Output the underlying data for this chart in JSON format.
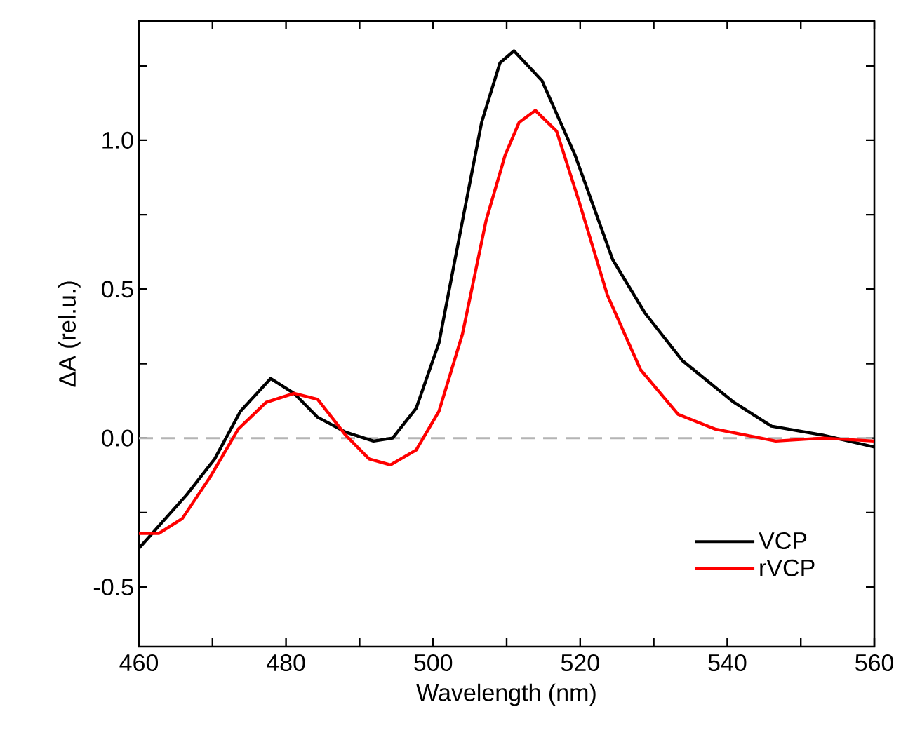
{
  "chart_data": {
    "type": "line",
    "xlabel": "Wavelength (nm)",
    "ylabel": "ΔA (rel.u.)",
    "xlim": [
      460,
      560
    ],
    "ylim": [
      -0.7,
      1.4
    ],
    "xticks": [
      460,
      {
        "value": 470,
        "label": null
      },
      480,
      {
        "value": 490,
        "label": null
      },
      500,
      {
        "value": 510,
        "label": null
      },
      520,
      {
        "value": 530,
        "label": null
      },
      540,
      {
        "value": 550,
        "label": null
      },
      560
    ],
    "yticks": [
      {
        "value": -0.5,
        "label": "-0.5"
      },
      {
        "value": -0.25,
        "label": null
      },
      {
        "value": 0,
        "label": "0.0"
      },
      {
        "value": 0.25,
        "label": null
      },
      {
        "value": 0.5,
        "label": "0.5"
      },
      {
        "value": 0.75,
        "label": null
      },
      {
        "value": 1,
        "label": "1.0"
      },
      {
        "value": 1.25,
        "label": null
      }
    ],
    "legend": "bottom right",
    "marker": "none",
    "line_style": "solid",
    "grid": false,
    "ref_lines": [
      {
        "axis": "y",
        "value": 0,
        "color": "#b4b4b4",
        "line_style": "dashed"
      }
    ],
    "series": [
      {
        "name": "VCP",
        "color": "#000000",
        "x": [
          460,
          466.5,
          470.3,
          473.8,
          477.9,
          481.1,
          484.3,
          488.1,
          491.9,
          494.5,
          497.7,
          500.8,
          504.0,
          506.6,
          509.1,
          511.0,
          514.8,
          519.3,
          524.4,
          528.8,
          533.9,
          540.9,
          546.0,
          553.0,
          560
        ],
        "values": [
          -0.37,
          -0.19,
          -0.07,
          0.09,
          0.2,
          0.15,
          0.07,
          0.02,
          -0.01,
          0.0,
          0.1,
          0.32,
          0.73,
          1.06,
          1.26,
          1.3,
          1.2,
          0.95,
          0.6,
          0.42,
          0.26,
          0.12,
          0.04,
          0.01,
          -0.03
        ]
      },
      {
        "name": "rVCP",
        "color": "#ff0000",
        "x": [
          460,
          462.7,
          465.9,
          469.7,
          473.5,
          477.3,
          481.1,
          484.3,
          488.1,
          491.3,
          494.2,
          497.7,
          500.8,
          504.0,
          507.2,
          509.8,
          511.7,
          513.9,
          516.8,
          519.9,
          523.7,
          528.2,
          533.3,
          538.4,
          546.6,
          553.0,
          560
        ],
        "values": [
          -0.32,
          -0.32,
          -0.27,
          -0.13,
          0.03,
          0.12,
          0.15,
          0.13,
          0.01,
          -0.07,
          -0.09,
          -0.04,
          0.09,
          0.35,
          0.73,
          0.95,
          1.06,
          1.1,
          1.03,
          0.79,
          0.48,
          0.23,
          0.08,
          0.03,
          -0.01,
          0.0,
          -0.01
        ]
      }
    ]
  }
}
